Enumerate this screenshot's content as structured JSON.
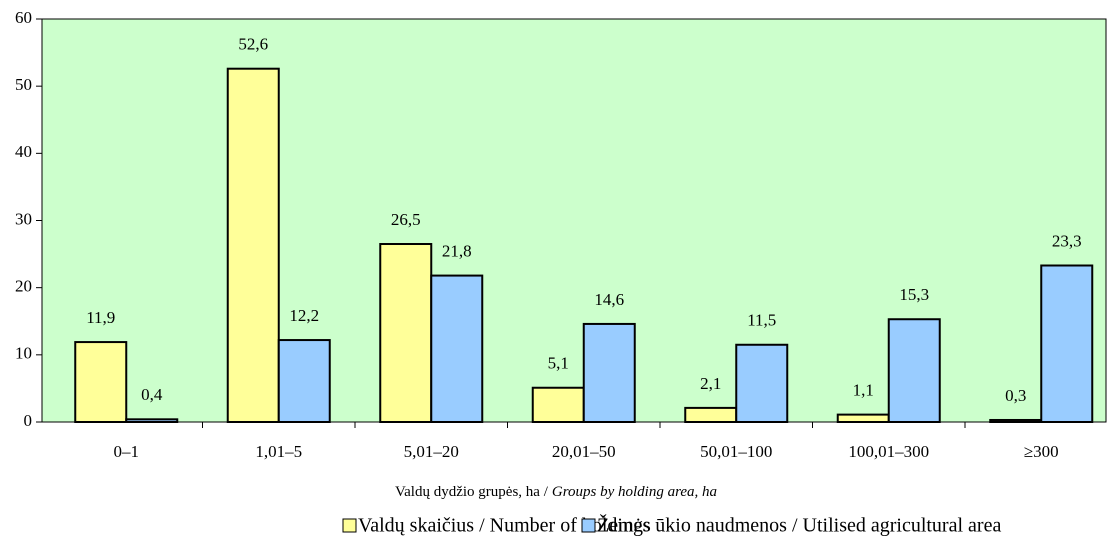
{
  "chart_data": {
    "type": "bar",
    "x_label": {
      "main": "Valdų dydžio grupės, ha /",
      "italic": "Groups by holding area, ha"
    },
    "categories": [
      "0–1",
      "1,01–5",
      "5,01–20",
      "20,01–50",
      "50,01–100",
      "100,01–300",
      "≥300"
    ],
    "series": [
      {
        "name": "Valdų skaičius / Number of holdings",
        "color": "#ffff99",
        "values": [
          11.9,
          52.6,
          26.5,
          5.1,
          2.1,
          1.1,
          0.3
        ],
        "value_labels": [
          "11,9",
          "52,6",
          "26,5",
          "5,1",
          "2,1",
          "1,1",
          "0,3"
        ]
      },
      {
        "name": "Žemės ūkio naudmenos / Utilised agricultural area",
        "color": "#99ccff",
        "values": [
          0.4,
          12.2,
          21.8,
          14.6,
          11.5,
          15.3,
          23.3
        ],
        "value_labels": [
          "0,4",
          "12,2",
          "21,8",
          "14,6",
          "11,5",
          "15,3",
          "23,3"
        ]
      }
    ],
    "ylim": [
      0,
      60
    ],
    "yticks": [
      0,
      10,
      20,
      30,
      40,
      50,
      60
    ],
    "plot_background": "#ccffcc",
    "legend": "bottom"
  }
}
